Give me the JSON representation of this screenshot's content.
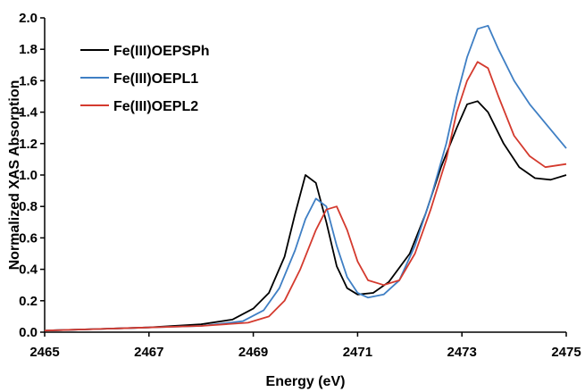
{
  "chart_data": {
    "type": "line",
    "title": "",
    "xlabel": "Energy (eV)",
    "ylabel": "Normalized XAS Absorption",
    "xlim": [
      2465,
      2475
    ],
    "ylim": [
      0.0,
      2.0
    ],
    "x_ticks": [
      "2465",
      "2467",
      "2469",
      "2471",
      "2473",
      "2475"
    ],
    "y_ticks": [
      "0.0",
      "0.2",
      "0.4",
      "0.6",
      "0.8",
      "1.0",
      "1.2",
      "1.4",
      "1.6",
      "1.8",
      "2.0"
    ],
    "grid": false,
    "legend_position": "top-left",
    "series": [
      {
        "name": "Fe(III)OEPSPh",
        "color": "#000000",
        "points": [
          [
            2465,
            0.01
          ],
          [
            2466,
            0.02
          ],
          [
            2467,
            0.03
          ],
          [
            2468,
            0.05
          ],
          [
            2468.6,
            0.08
          ],
          [
            2469,
            0.15
          ],
          [
            2469.3,
            0.25
          ],
          [
            2469.6,
            0.48
          ],
          [
            2469.8,
            0.75
          ],
          [
            2470,
            1.0
          ],
          [
            2470.2,
            0.95
          ],
          [
            2470.4,
            0.7
          ],
          [
            2470.6,
            0.42
          ],
          [
            2470.8,
            0.28
          ],
          [
            2471,
            0.24
          ],
          [
            2471.3,
            0.25
          ],
          [
            2471.6,
            0.32
          ],
          [
            2472,
            0.5
          ],
          [
            2472.3,
            0.75
          ],
          [
            2472.6,
            1.05
          ],
          [
            2472.9,
            1.3
          ],
          [
            2473.1,
            1.45
          ],
          [
            2473.3,
            1.47
          ],
          [
            2473.5,
            1.4
          ],
          [
            2473.8,
            1.2
          ],
          [
            2474.1,
            1.05
          ],
          [
            2474.4,
            0.98
          ],
          [
            2474.7,
            0.97
          ],
          [
            2475,
            1.0
          ]
        ]
      },
      {
        "name": "Fe(III)OEPL1",
        "color": "#3f7fc4",
        "points": [
          [
            2465,
            0.01
          ],
          [
            2466,
            0.02
          ],
          [
            2467,
            0.03
          ],
          [
            2468,
            0.04
          ],
          [
            2468.8,
            0.07
          ],
          [
            2469.2,
            0.14
          ],
          [
            2469.5,
            0.28
          ],
          [
            2469.8,
            0.52
          ],
          [
            2470,
            0.72
          ],
          [
            2470.2,
            0.85
          ],
          [
            2470.4,
            0.8
          ],
          [
            2470.6,
            0.55
          ],
          [
            2470.8,
            0.35
          ],
          [
            2471,
            0.25
          ],
          [
            2471.2,
            0.22
          ],
          [
            2471.5,
            0.24
          ],
          [
            2471.8,
            0.33
          ],
          [
            2472.1,
            0.55
          ],
          [
            2472.4,
            0.85
          ],
          [
            2472.7,
            1.2
          ],
          [
            2472.9,
            1.5
          ],
          [
            2473.1,
            1.75
          ],
          [
            2473.3,
            1.93
          ],
          [
            2473.5,
            1.95
          ],
          [
            2473.7,
            1.8
          ],
          [
            2474,
            1.6
          ],
          [
            2474.3,
            1.45
          ],
          [
            2474.6,
            1.33
          ],
          [
            2475,
            1.17
          ]
        ]
      },
      {
        "name": "Fe(III)OEPL2",
        "color": "#d43a2e",
        "points": [
          [
            2465,
            0.01
          ],
          [
            2466,
            0.02
          ],
          [
            2467,
            0.03
          ],
          [
            2468,
            0.04
          ],
          [
            2468.9,
            0.06
          ],
          [
            2469.3,
            0.1
          ],
          [
            2469.6,
            0.2
          ],
          [
            2469.9,
            0.4
          ],
          [
            2470.2,
            0.65
          ],
          [
            2470.4,
            0.78
          ],
          [
            2470.6,
            0.8
          ],
          [
            2470.8,
            0.65
          ],
          [
            2471,
            0.45
          ],
          [
            2471.2,
            0.33
          ],
          [
            2471.5,
            0.3
          ],
          [
            2471.8,
            0.33
          ],
          [
            2472.1,
            0.5
          ],
          [
            2472.4,
            0.78
          ],
          [
            2472.7,
            1.1
          ],
          [
            2472.9,
            1.4
          ],
          [
            2473.1,
            1.6
          ],
          [
            2473.3,
            1.72
          ],
          [
            2473.5,
            1.68
          ],
          [
            2473.7,
            1.5
          ],
          [
            2474,
            1.25
          ],
          [
            2474.3,
            1.12
          ],
          [
            2474.6,
            1.05
          ],
          [
            2475,
            1.07
          ]
        ]
      }
    ]
  }
}
